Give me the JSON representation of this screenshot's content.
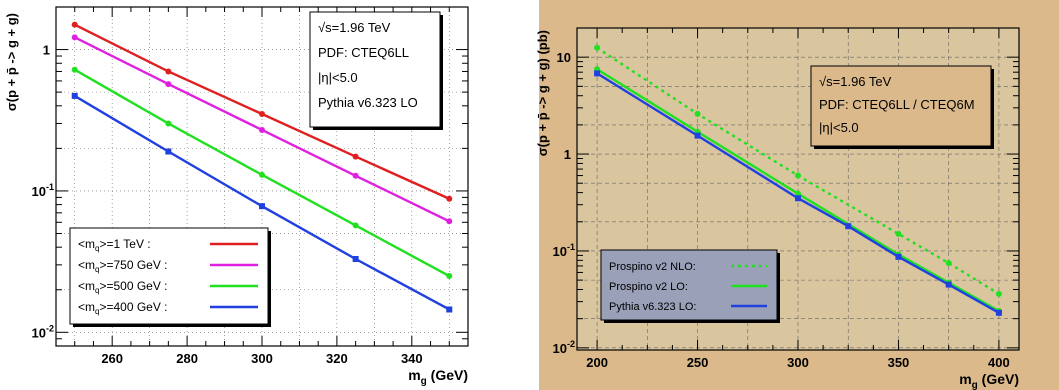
{
  "chart_data": [
    {
      "type": "line",
      "xlabel": "m",
      "xlabel_sub": "g",
      "xlabel_unit": " (GeV)",
      "ylabel": "σ(p + p̄ -> g + g)",
      "xlim": [
        245,
        355
      ],
      "ylim": [
        0.008,
        2
      ],
      "log_y": true,
      "grid": true,
      "background": "#ffffff",
      "x_ticks": [
        260,
        280,
        300,
        320,
        340
      ],
      "y_ticks": [
        {
          "value": 1,
          "base": "1",
          "exp": ""
        },
        {
          "value": 0.1,
          "base": "10",
          "exp": "-1"
        },
        {
          "value": 0.01,
          "base": "10",
          "exp": "-2"
        }
      ],
      "info_box": [
        "√s=1.96 TeV",
        "PDF: CTEQ6LL",
        "|η|<5.0",
        "Pythia v6.323 LO"
      ],
      "legend_position": "bottom-left",
      "series": [
        {
          "name": "<mq>=1 TeV :",
          "color": "#e02020",
          "marker": "circle",
          "style": "solid",
          "x": [
            250,
            275,
            300,
            325,
            350
          ],
          "values": [
            1.5,
            0.7,
            0.35,
            0.175,
            0.088
          ]
        },
        {
          "name": "<mq>=750 GeV :",
          "color": "#e020e0",
          "marker": "circle",
          "style": "solid",
          "x": [
            250,
            275,
            300,
            325,
            350
          ],
          "values": [
            1.22,
            0.57,
            0.27,
            0.128,
            0.061
          ]
        },
        {
          "name": "<mq>=500 GeV :",
          "color": "#20e020",
          "marker": "circle",
          "style": "solid",
          "x": [
            250,
            275,
            300,
            325,
            350
          ],
          "values": [
            0.72,
            0.3,
            0.13,
            0.057,
            0.025
          ]
        },
        {
          "name": "<mq>=400 GeV :",
          "color": "#2040e0",
          "marker": "square",
          "style": "solid",
          "x": [
            250,
            275,
            300,
            325,
            350
          ],
          "values": [
            0.47,
            0.19,
            0.078,
            0.033,
            0.0145
          ]
        }
      ]
    },
    {
      "type": "line",
      "xlabel": "m",
      "xlabel_sub": "g",
      "xlabel_unit": " (GeV)",
      "ylabel": "σ(p + p̄ -> g + g) (pb)",
      "xlim": [
        190,
        410
      ],
      "ylim": [
        0.0095,
        20
      ],
      "log_y": true,
      "grid": true,
      "background": "#d9c59e",
      "x_ticks": [
        200,
        250,
        300,
        350,
        400
      ],
      "y_ticks": [
        {
          "value": 10,
          "base": "10",
          "exp": ""
        },
        {
          "value": 1,
          "base": "1",
          "exp": ""
        },
        {
          "value": 0.1,
          "base": "10",
          "exp": "-1"
        },
        {
          "value": 0.01,
          "base": "10",
          "exp": "-2"
        }
      ],
      "info_box": [
        "√s=1.96 TeV",
        "PDF: CTEQ6LL / CTEQ6M",
        "|η|<5.0"
      ],
      "legend_position": "bottom-left",
      "series": [
        {
          "name": "Prospino v2 NLO:",
          "color": "#20e020",
          "marker": "circle",
          "style": "dotted",
          "x": [
            200,
            250,
            300,
            350,
            375,
            400
          ],
          "values": [
            12.5,
            2.6,
            0.6,
            0.15,
            0.075,
            0.036
          ]
        },
        {
          "name": "Prospino v2 LO:",
          "color": "#20e020",
          "marker": "circle",
          "style": "solid",
          "x": [
            200,
            250,
            300,
            350,
            375,
            400
          ],
          "values": [
            7.5,
            1.7,
            0.39,
            0.092,
            0.047,
            0.024
          ]
        },
        {
          "name": "Pythia v6.323 LO:",
          "color": "#2040e0",
          "marker": "square",
          "style": "solid",
          "x": [
            200,
            250,
            300,
            325,
            350,
            375,
            400
          ],
          "values": [
            6.8,
            1.55,
            0.35,
            0.18,
            0.087,
            0.045,
            0.023
          ]
        }
      ]
    }
  ]
}
